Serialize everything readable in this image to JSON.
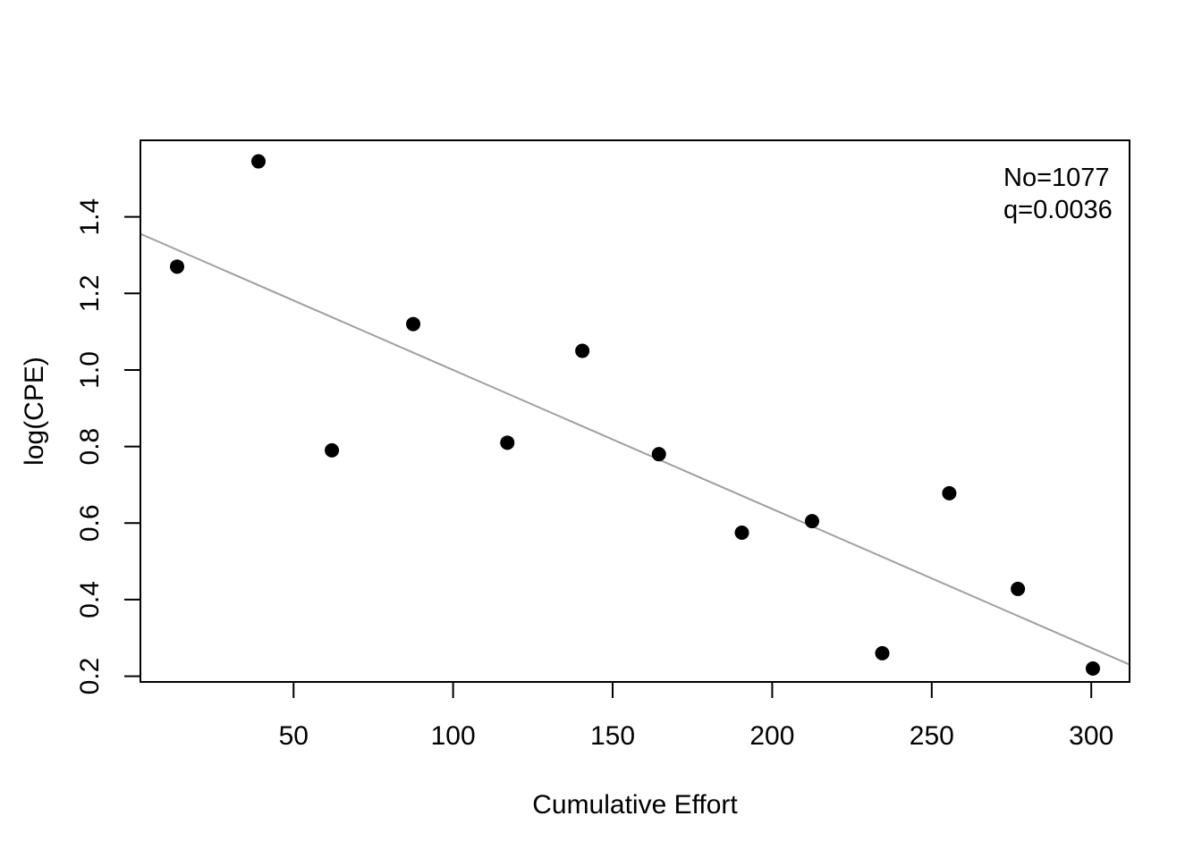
{
  "chart_data": {
    "type": "scatter",
    "title": "",
    "xlabel": "Cumulative Effort",
    "ylabel": "log(CPE)",
    "xlim": [
      2,
      312
    ],
    "ylim": [
      0.185,
      1.6
    ],
    "xticks": [
      50,
      100,
      150,
      200,
      250,
      300
    ],
    "yticks": [
      0.2,
      0.4,
      0.6,
      0.8,
      1.0,
      1.2,
      1.4
    ],
    "ytick_labels": [
      "0.2",
      "0.4",
      "0.6",
      "0.8",
      "1.0",
      "1.2",
      "1.4"
    ],
    "grid": false,
    "series": [
      {
        "x": [
          13.5,
          39,
          62,
          87.5,
          117,
          140.5,
          164.5,
          190.5,
          212.5,
          234.5,
          255.5,
          277,
          300.5
        ],
        "y": [
          1.27,
          1.545,
          0.79,
          1.12,
          0.81,
          1.05,
          0.78,
          0.575,
          0.605,
          0.26,
          0.678,
          0.428,
          0.22
        ]
      }
    ],
    "fit_line": {
      "color": "#a0a0a0",
      "intercept": 1.363,
      "slope": -0.00363
    },
    "annotations": [
      "No=1077",
      "q=0.0036"
    ]
  }
}
